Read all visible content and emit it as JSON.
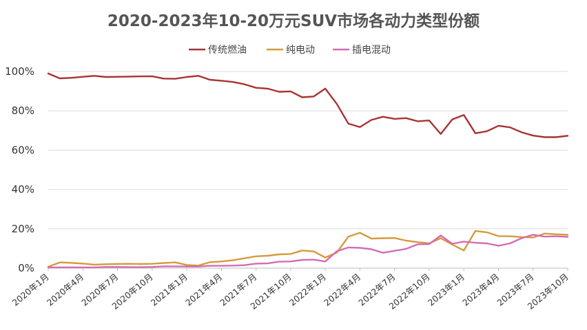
{
  "chart_data": {
    "type": "line",
    "title": "2020-2023年10-20万元SUV市场各动力类型份额",
    "x_tick_labels": [
      "2020年1月",
      "2020年4月",
      "2020年7月",
      "2020年10月",
      "2021年1月",
      "2021年4月",
      "2021年7月",
      "2021年10月",
      "2022年1月",
      "2022年4月",
      "2022年7月",
      "2022年10月",
      "2023年1月",
      "2023年4月",
      "2023年7月",
      "2023年10月"
    ],
    "y_tick_labels": [
      "0%",
      "20%",
      "40%",
      "60%",
      "80%",
      "100%"
    ],
    "ylim": [
      0,
      100
    ],
    "grid": true,
    "legend_position": "top",
    "series": [
      {
        "name": "传统燃油",
        "color": "#a83232",
        "values": [
          99,
          96.5,
          96.8,
          97.3,
          97.8,
          97.2,
          97.3,
          97.4,
          97.5,
          97.6,
          96.4,
          96.3,
          97.2,
          97.8,
          95.8,
          95.3,
          94.7,
          93.5,
          91.7,
          91.3,
          89.7,
          89.9,
          86.9,
          87.3,
          91.3,
          83.5,
          73.5,
          71.7,
          75.4,
          77,
          75.9,
          76.3,
          74.7,
          75.1,
          68.2,
          75.6,
          77.9,
          68.6,
          69.6,
          72.4,
          71.6,
          69.1,
          67.4,
          66.6,
          66.6,
          67.3
        ]
      },
      {
        "name": "纯电动",
        "color": "#d49a3a",
        "values": [
          0.7,
          2.9,
          2.7,
          2.3,
          1.8,
          2,
          2.1,
          2.2,
          2.1,
          2.2,
          2.6,
          2.9,
          1.6,
          1.3,
          3,
          3.4,
          4,
          5,
          6,
          6.3,
          7,
          7.2,
          9,
          8.5,
          5.4,
          7.9,
          16,
          18,
          15,
          15.2,
          15.3,
          14,
          13.2,
          12.6,
          15.2,
          12,
          9,
          18.9,
          18.2,
          16.3,
          16.2,
          15.8,
          15.6,
          17.6,
          17.2,
          17
        ]
      },
      {
        "name": "插电混动",
        "color": "#d36cb4",
        "values": [
          0.3,
          0.4,
          0.4,
          0.4,
          0.4,
          0.6,
          0.6,
          0.5,
          0.5,
          0.6,
          0.9,
          0.9,
          0.8,
          0.8,
          1.2,
          1.2,
          1.3,
          1.5,
          2.3,
          2.4,
          3.3,
          3.4,
          4.2,
          4.3,
          3.4,
          8.6,
          10.5,
          10.3,
          9.6,
          7.8,
          8.8,
          9.8,
          12.1,
          12.2,
          16.6,
          12.4,
          13.5,
          12.9,
          12.6,
          11.4,
          12.6,
          15.2,
          17,
          16,
          16.2,
          15.9
        ]
      }
    ]
  }
}
